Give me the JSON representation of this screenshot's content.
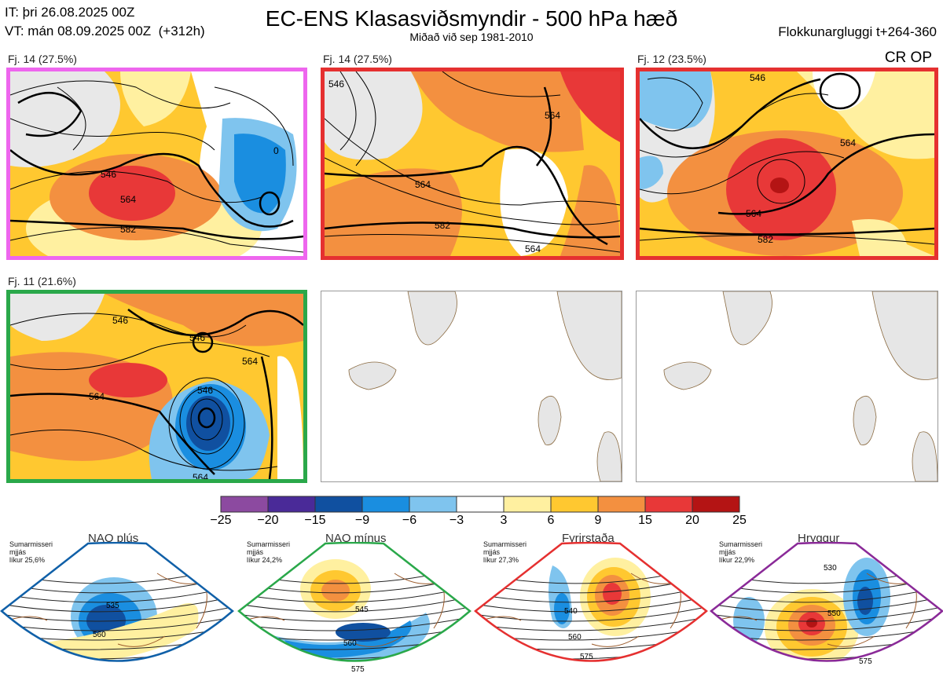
{
  "header": {
    "it_line": "IT: þri 26.08.2025 00Z",
    "vt_line": "VT: mán 08.09.2025 00Z  (+312h)",
    "title": "EC-ENS Klasasviðsmyndir - 500 hPa hæð",
    "subtitle": "Miðað við sep 1981-2010",
    "window": "Flokkunargluggi t+264-360",
    "crop_label": "CR OP"
  },
  "panels": [
    {
      "label": "Fj. 14 (27.5%)",
      "border": "#ee66ee",
      "contours": [
        "546",
        "564",
        "582",
        "0"
      ]
    },
    {
      "label": "Fj. 14 (27.5%)",
      "border": "#e53030",
      "contours": [
        "546",
        "564",
        "564",
        "582",
        "564"
      ]
    },
    {
      "label": "Fj. 12 (23.5%)",
      "border": "#e53030",
      "contours": [
        "546",
        "564",
        "564",
        "582"
      ]
    },
    {
      "label": "Fj. 11 (21.6%)",
      "border": "#2aa84a",
      "contours": [
        "546",
        "546",
        "564",
        "546",
        "564",
        "564"
      ]
    },
    {
      "label": "",
      "border": "#999999",
      "contours": []
    },
    {
      "label": "",
      "border": "#999999",
      "contours": []
    }
  ],
  "colorbar": {
    "ticks": [
      "−25",
      "−20",
      "−15",
      "−9",
      "−6",
      "−3",
      "3",
      "6",
      "9",
      "15",
      "20",
      "25"
    ],
    "colors": [
      "#8c4aa0",
      "#4a2a98",
      "#1050a0",
      "#1a8ee0",
      "#7fc4ee",
      "#ffffff",
      "#fff0a0",
      "#ffc830",
      "#f39040",
      "#e83838",
      "#b41414"
    ]
  },
  "regimes": [
    {
      "title": "NAO plús",
      "info": "Sumarmisseri\nmjjás\nlíkur 25,6%",
      "edge": "#1060a8",
      "dot": "#1060a8",
      "contours": [
        "535",
        "560"
      ]
    },
    {
      "title": "NAO mínus",
      "info": "Sumarmisseri\nmjjás\nlíkur 24,2%",
      "edge": "#2aa84a",
      "dot": "#2aa84a",
      "contours": [
        "545",
        "560",
        "575"
      ]
    },
    {
      "title": "Fyrirstaða",
      "info": "Sumarmisseri\nmjjás\nlíkur 27,3%",
      "edge": "#e53030",
      "dot": "#e53030",
      "contours": [
        "540",
        "560",
        "575"
      ]
    },
    {
      "title": "Hryggur",
      "info": "Sumarmisseri\nmjjás\nlíkur 22,9%",
      "edge": "#8a2a98",
      "dot": "#ee66ee",
      "contours": [
        "530",
        "550",
        "575"
      ]
    }
  ]
}
